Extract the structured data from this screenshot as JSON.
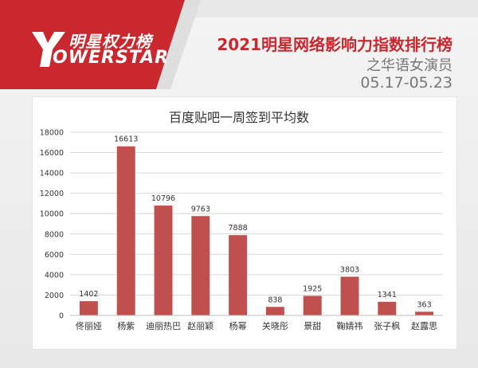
{
  "header": {
    "logo_cn": "明星权力榜",
    "logo_en": "OWERSTAR",
    "logo_initial": "Y",
    "title": "2021明星网络影响力指数排行榜",
    "subtitle": "之华语女演员",
    "date_range": "05.17-05.23"
  },
  "colors": {
    "bar": "#c0504d",
    "brand_red": "#c8282e",
    "grid": "#d9d9d9"
  },
  "chart_data": {
    "type": "bar",
    "title": "百度贴吧一周签到平均数",
    "categories": [
      "佟丽娅",
      "杨紫",
      "迪丽热巴",
      "赵丽颖",
      "杨幂",
      "关晓彤",
      "景甜",
      "鞠婧祎",
      "张子枫",
      "赵露思"
    ],
    "values": [
      1402,
      16613,
      10796,
      9763,
      7888,
      838,
      1925,
      3803,
      1341,
      363
    ],
    "ylim": [
      0,
      18000
    ],
    "yticks": [
      0,
      2000,
      4000,
      6000,
      8000,
      10000,
      12000,
      14000,
      16000,
      18000
    ],
    "grid": true,
    "data_labels": true
  }
}
